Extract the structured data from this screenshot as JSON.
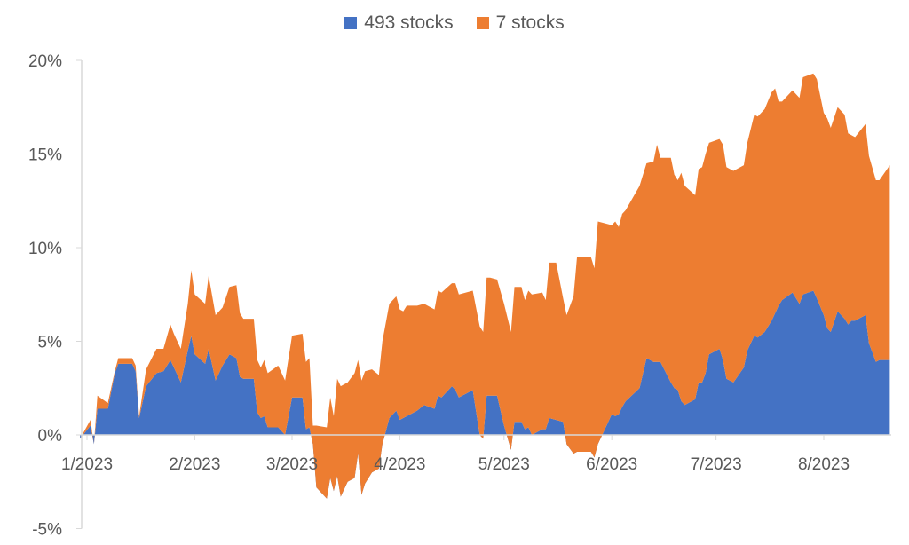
{
  "chart_data": {
    "type": "area",
    "stacked": true,
    "title": "",
    "xlabel": "",
    "ylabel": "",
    "x_unit": "days since 1/1/2023",
    "ylim": [
      -5,
      20
    ],
    "y_ticks": [
      -5,
      0,
      5,
      10,
      15,
      20
    ],
    "y_tick_labels": [
      "-5%",
      "0%",
      "5%",
      "10%",
      "15%",
      "20%"
    ],
    "x_ticks": [
      0,
      31,
      59,
      90,
      120,
      151,
      181,
      212
    ],
    "x_tick_labels": [
      "1/2023",
      "2/2023",
      "3/2023",
      "4/2023",
      "5/2023",
      "6/2023",
      "7/2023",
      "8/2023"
    ],
    "legend_position": "top",
    "grid": false,
    "x": [
      -2,
      1,
      2,
      3,
      6,
      8,
      9,
      13,
      14,
      15,
      17,
      20,
      22,
      24,
      25,
      27,
      29,
      30,
      31,
      34,
      35,
      37,
      39,
      41,
      43,
      44,
      45,
      48,
      49,
      50,
      51,
      52,
      55,
      57,
      59,
      62,
      63,
      64,
      65,
      66,
      69,
      70,
      71,
      72,
      73,
      75,
      77,
      78,
      79,
      80,
      82,
      84,
      85,
      87,
      89,
      90,
      91,
      92,
      95,
      97,
      100,
      101,
      102,
      105,
      106,
      107,
      109,
      111,
      113,
      114,
      115,
      116,
      118,
      120,
      122,
      123,
      125,
      126,
      127,
      128,
      131,
      132,
      133,
      135,
      137,
      138,
      140,
      141,
      145,
      146,
      147,
      151,
      152,
      153,
      154,
      155,
      159,
      161,
      163,
      164,
      165,
      168,
      169,
      170,
      171,
      172,
      175,
      176,
      177,
      178,
      179,
      182,
      183,
      184,
      186,
      189,
      190,
      192,
      193,
      195,
      197,
      198,
      199,
      200,
      203,
      205,
      206,
      209,
      210,
      212,
      213,
      214,
      216,
      218,
      219,
      220,
      221,
      224,
      225,
      227,
      228,
      231
    ],
    "series": [
      {
        "name": "493 stocks",
        "color": "#4472C4",
        "values": [
          -0.2,
          0.5,
          -0.5,
          1.4,
          1.4,
          3.3,
          3.8,
          3.8,
          3.4,
          0.9,
          2.6,
          3.3,
          3.4,
          4.0,
          3.6,
          2.8,
          4.5,
          5.3,
          4.3,
          3.8,
          4.6,
          2.9,
          3.7,
          4.3,
          4.1,
          3.1,
          3.0,
          3.0,
          1.2,
          0.9,
          1.0,
          0.4,
          0.4,
          0.0,
          2.0,
          2.0,
          0.3,
          0.4,
          -0.5,
          -2.8,
          -3.4,
          -2.3,
          -3.0,
          -2.2,
          -3.3,
          -2.5,
          -2.3,
          -1.0,
          -3.2,
          -2.6,
          -2.0,
          -1.8,
          -0.5,
          0.9,
          1.3,
          0.8,
          0.9,
          1.0,
          1.3,
          1.6,
          1.4,
          2.1,
          2.0,
          2.6,
          2.4,
          2.0,
          2.2,
          2.4,
          0.0,
          -0.2,
          2.1,
          2.1,
          2.1,
          0.5,
          -0.8,
          0.7,
          0.7,
          0.3,
          0.4,
          0.0,
          0.3,
          0.3,
          0.9,
          0.8,
          0.7,
          -0.5,
          -1.0,
          -0.9,
          -0.9,
          -1.2,
          -0.5,
          1.1,
          1.0,
          1.1,
          1.5,
          1.8,
          2.5,
          4.1,
          3.9,
          3.9,
          3.9,
          2.8,
          2.5,
          2.4,
          1.8,
          1.6,
          1.9,
          2.8,
          2.8,
          3.3,
          4.3,
          4.6,
          4.0,
          3.0,
          2.8,
          3.6,
          4.5,
          5.3,
          5.2,
          5.5,
          6.1,
          6.5,
          6.9,
          7.2,
          7.6,
          7.0,
          7.5,
          7.7,
          7.3,
          6.4,
          5.7,
          5.5,
          6.6,
          6.2,
          5.9,
          6.1,
          6.1,
          6.4,
          4.9,
          3.9,
          4.0,
          4.0
        ]
      },
      {
        "name": "7 stocks",
        "color": "#ED7D31",
        "values": [
          0,
          0.3,
          0,
          0.7,
          0.3,
          0.1,
          0.3,
          0.3,
          0.3,
          0.1,
          0.9,
          1.3,
          1.2,
          1.9,
          1.8,
          1.8,
          2.5,
          3.5,
          3.2,
          3.2,
          3.9,
          3.5,
          3.1,
          3.6,
          3.9,
          3.4,
          3.2,
          3.2,
          2.8,
          2.7,
          3.0,
          2.9,
          3.3,
          2.9,
          3.3,
          3.4,
          3.6,
          3.7,
          1.0,
          3.3,
          3.8,
          4.3,
          4.0,
          5.2,
          5.9,
          5.3,
          5.6,
          5.0,
          6.1,
          6.0,
          5.5,
          5.0,
          5.5,
          6.1,
          6.1,
          5.9,
          5.7,
          5.9,
          5.6,
          5.4,
          5.3,
          5.6,
          5.6,
          5.5,
          5.7,
          5.5,
          5.4,
          5.3,
          5.8,
          5.7,
          6.3,
          6.3,
          6.2,
          6.5,
          6.3,
          7.2,
          7.2,
          6.9,
          7.3,
          7.5,
          7.3,
          6.9,
          8.3,
          8.4,
          6.6,
          6.9,
          8.4,
          10.4,
          10.4,
          10.1,
          11.9,
          10.1,
          10.4,
          10.0,
          10.3,
          10.2,
          10.8,
          10.4,
          10.7,
          11.6,
          10.9,
          12.0,
          11.4,
          11.2,
          12.2,
          11.7,
          10.9,
          11.4,
          11.5,
          11.7,
          11.3,
          11.2,
          11.5,
          11.3,
          11.3,
          10.8,
          11.1,
          11.8,
          11.8,
          11.9,
          12.2,
          12.0,
          10.9,
          10.6,
          10.8,
          11.0,
          11.6,
          11.6,
          11.7,
          10.8,
          11.2,
          10.9,
          10.9,
          10.9,
          10.2,
          9.9,
          9.8,
          10.2,
          10.0,
          9.7,
          9.6,
          10.4
        ]
      }
    ]
  }
}
